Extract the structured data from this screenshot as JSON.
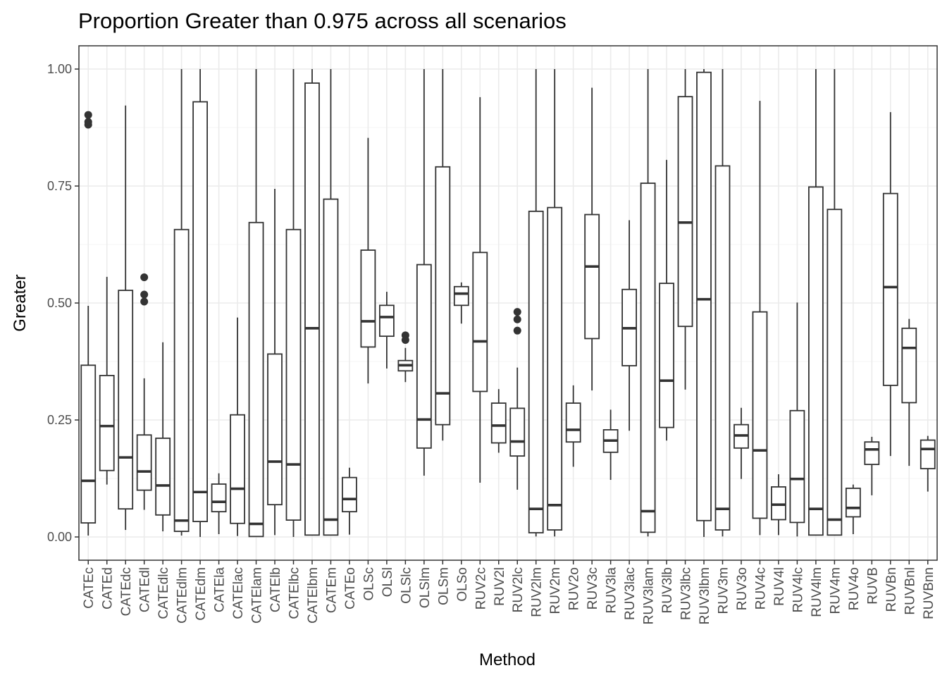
{
  "chart_data": {
    "type": "box",
    "title": "Proportion Greater than 0.975 across all scenarios",
    "xlabel": "Method",
    "ylabel": "Greater",
    "ylim": [
      -0.049,
      1.049
    ],
    "yticks": [
      0.0,
      0.25,
      0.5,
      0.75,
      1.0
    ],
    "ytick_labels": [
      "0.00",
      "0.25",
      "0.50",
      "0.75",
      "1.00"
    ],
    "grid": true,
    "colors": {
      "box_stroke": "#333333",
      "grid_major": "#ebebeb",
      "grid_minor": "#f5f5f5",
      "panel_border": "#333333"
    },
    "categories": [
      "CATEc",
      "CATEd",
      "CATEdc",
      "CATEdl",
      "CATEdlc",
      "CATEdlm",
      "CATEdm",
      "CATEla",
      "CATElac",
      "CATElam",
      "CATElb",
      "CATElbc",
      "CATElbm",
      "CATEm",
      "CATEo",
      "OLSc",
      "OLSl",
      "OLSlc",
      "OLSlm",
      "OLSm",
      "OLSo",
      "RUV2c",
      "RUV2l",
      "RUV2lc",
      "RUV2lm",
      "RUV2m",
      "RUV2o",
      "RUV3c",
      "RUV3la",
      "RUV3lac",
      "RUV3lam",
      "RUV3lb",
      "RUV3lbc",
      "RUV3lbm",
      "RUV3m",
      "RUV3o",
      "RUV4c",
      "RUV4l",
      "RUV4lc",
      "RUV4lm",
      "RUV4m",
      "RUV4o",
      "RUVB",
      "RUVBn",
      "RUVBnl",
      "RUVBnn"
    ],
    "boxes": [
      {
        "min": 0.003,
        "q1": 0.03,
        "median": 0.12,
        "q3": 0.367,
        "max": 0.494,
        "outliers": [
          0.902,
          0.881,
          0.887
        ]
      },
      {
        "min": 0.112,
        "q1": 0.142,
        "median": 0.237,
        "q3": 0.345,
        "max": 0.556,
        "outliers": []
      },
      {
        "min": 0.015,
        "q1": 0.06,
        "median": 0.17,
        "q3": 0.527,
        "max": 0.922,
        "outliers": []
      },
      {
        "min": 0.058,
        "q1": 0.1,
        "median": 0.14,
        "q3": 0.218,
        "max": 0.339,
        "outliers": [
          0.555,
          0.518,
          0.503
        ]
      },
      {
        "min": 0.012,
        "q1": 0.047,
        "median": 0.11,
        "q3": 0.211,
        "max": 0.416,
        "outliers": []
      },
      {
        "min": 0.003,
        "q1": 0.012,
        "median": 0.035,
        "q3": 0.657,
        "max": 1.0,
        "outliers": []
      },
      {
        "min": 0.0,
        "q1": 0.033,
        "median": 0.096,
        "q3": 0.93,
        "max": 1.0,
        "outliers": []
      },
      {
        "min": 0.006,
        "q1": 0.054,
        "median": 0.075,
        "q3": 0.113,
        "max": 0.136,
        "outliers": []
      },
      {
        "min": 0.002,
        "q1": 0.029,
        "median": 0.103,
        "q3": 0.261,
        "max": 0.469,
        "outliers": []
      },
      {
        "min": 0.001,
        "q1": 0.001,
        "median": 0.028,
        "q3": 0.672,
        "max": 1.0,
        "outliers": []
      },
      {
        "min": 0.004,
        "q1": 0.069,
        "median": 0.161,
        "q3": 0.391,
        "max": 0.744,
        "outliers": []
      },
      {
        "min": 0.0,
        "q1": 0.036,
        "median": 0.155,
        "q3": 0.657,
        "max": 1.0,
        "outliers": []
      },
      {
        "min": 0.004,
        "q1": 0.004,
        "median": 0.446,
        "q3": 0.97,
        "max": 1.0,
        "outliers": []
      },
      {
        "min": 0.004,
        "q1": 0.004,
        "median": 0.037,
        "q3": 0.722,
        "max": 1.0,
        "outliers": []
      },
      {
        "min": 0.005,
        "q1": 0.054,
        "median": 0.081,
        "q3": 0.127,
        "max": 0.148,
        "outliers": []
      },
      {
        "min": 0.328,
        "q1": 0.406,
        "median": 0.461,
        "q3": 0.613,
        "max": 0.853,
        "outliers": []
      },
      {
        "min": 0.36,
        "q1": 0.429,
        "median": 0.47,
        "q3": 0.495,
        "max": 0.524,
        "outliers": []
      },
      {
        "min": 0.331,
        "q1": 0.355,
        "median": 0.367,
        "q3": 0.377,
        "max": 0.404,
        "outliers": [
          0.431,
          0.421
        ]
      },
      {
        "min": 0.131,
        "q1": 0.19,
        "median": 0.251,
        "q3": 0.582,
        "max": 1.0,
        "outliers": []
      },
      {
        "min": 0.206,
        "q1": 0.24,
        "median": 0.307,
        "q3": 0.791,
        "max": 1.0,
        "outliers": []
      },
      {
        "min": 0.456,
        "q1": 0.495,
        "median": 0.52,
        "q3": 0.535,
        "max": 0.544,
        "outliers": []
      },
      {
        "min": 0.116,
        "q1": 0.311,
        "median": 0.418,
        "q3": 0.608,
        "max": 0.94,
        "outliers": []
      },
      {
        "min": 0.18,
        "q1": 0.201,
        "median": 0.238,
        "q3": 0.286,
        "max": 0.316,
        "outliers": []
      },
      {
        "min": 0.101,
        "q1": 0.173,
        "median": 0.204,
        "q3": 0.275,
        "max": 0.362,
        "outliers": [
          0.481,
          0.465,
          0.441
        ]
      },
      {
        "min": 0.001,
        "q1": 0.009,
        "median": 0.06,
        "q3": 0.696,
        "max": 1.0,
        "outliers": []
      },
      {
        "min": 0.001,
        "q1": 0.015,
        "median": 0.068,
        "q3": 0.704,
        "max": 1.0,
        "outliers": []
      },
      {
        "min": 0.15,
        "q1": 0.203,
        "median": 0.229,
        "q3": 0.286,
        "max": 0.324,
        "outliers": []
      },
      {
        "min": 0.313,
        "q1": 0.424,
        "median": 0.578,
        "q3": 0.689,
        "max": 0.96,
        "outliers": []
      },
      {
        "min": 0.122,
        "q1": 0.181,
        "median": 0.206,
        "q3": 0.229,
        "max": 0.272,
        "outliers": []
      },
      {
        "min": 0.227,
        "q1": 0.366,
        "median": 0.446,
        "q3": 0.529,
        "max": 0.677,
        "outliers": []
      },
      {
        "min": 0.001,
        "q1": 0.01,
        "median": 0.055,
        "q3": 0.756,
        "max": 1.0,
        "outliers": []
      },
      {
        "min": 0.206,
        "q1": 0.234,
        "median": 0.334,
        "q3": 0.542,
        "max": 0.806,
        "outliers": []
      },
      {
        "min": 0.315,
        "q1": 0.45,
        "median": 0.672,
        "q3": 0.941,
        "max": 1.0,
        "outliers": []
      },
      {
        "min": 0.0,
        "q1": 0.035,
        "median": 0.508,
        "q3": 0.993,
        "max": 1.0,
        "outliers": []
      },
      {
        "min": 0.001,
        "q1": 0.015,
        "median": 0.06,
        "q3": 0.793,
        "max": 1.0,
        "outliers": []
      },
      {
        "min": 0.124,
        "q1": 0.19,
        "median": 0.217,
        "q3": 0.24,
        "max": 0.276,
        "outliers": []
      },
      {
        "min": 0.004,
        "q1": 0.04,
        "median": 0.185,
        "q3": 0.481,
        "max": 0.932,
        "outliers": []
      },
      {
        "min": 0.004,
        "q1": 0.037,
        "median": 0.069,
        "q3": 0.107,
        "max": 0.134,
        "outliers": []
      },
      {
        "min": 0.001,
        "q1": 0.031,
        "median": 0.124,
        "q3": 0.27,
        "max": 0.501,
        "outliers": []
      },
      {
        "min": 0.003,
        "q1": 0.004,
        "median": 0.06,
        "q3": 0.748,
        "max": 1.0,
        "outliers": []
      },
      {
        "min": 0.004,
        "q1": 0.004,
        "median": 0.037,
        "q3": 0.7,
        "max": 1.0,
        "outliers": []
      },
      {
        "min": 0.006,
        "q1": 0.043,
        "median": 0.062,
        "q3": 0.104,
        "max": 0.112,
        "outliers": []
      },
      {
        "min": 0.089,
        "q1": 0.155,
        "median": 0.187,
        "q3": 0.203,
        "max": 0.214,
        "outliers": []
      },
      {
        "min": 0.173,
        "q1": 0.324,
        "median": 0.534,
        "q3": 0.734,
        "max": 0.908,
        "outliers": []
      },
      {
        "min": 0.152,
        "q1": 0.287,
        "median": 0.404,
        "q3": 0.446,
        "max": 0.466,
        "outliers": []
      },
      {
        "min": 0.097,
        "q1": 0.146,
        "median": 0.188,
        "q3": 0.207,
        "max": 0.216,
        "outliers": []
      }
    ]
  }
}
